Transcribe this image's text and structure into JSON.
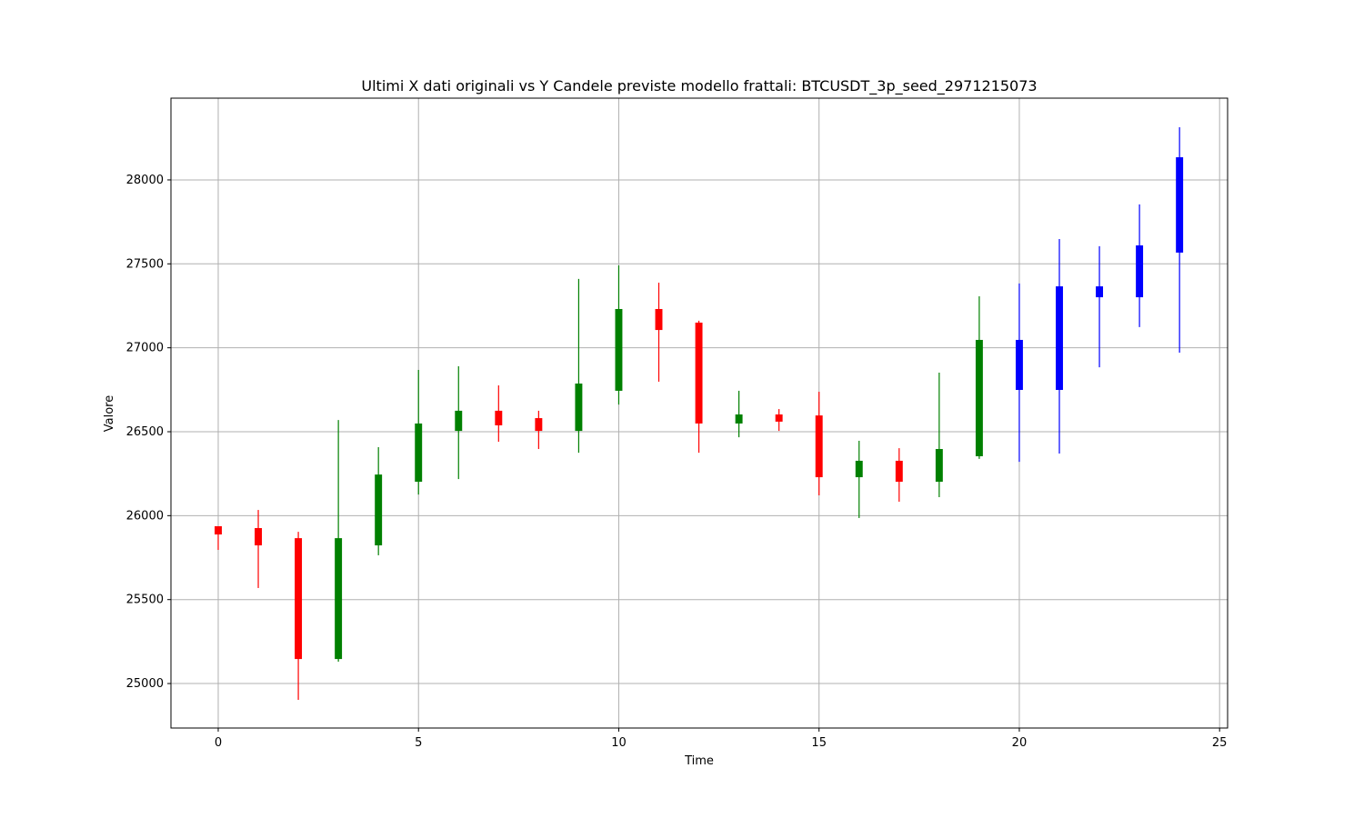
{
  "chart_data": {
    "type": "candlestick",
    "title": "Ultimi X dati originali vs Y Candele previste modello frattali: BTCUSDT_3p_seed_2971215073",
    "x_label": "Time",
    "y_label": "Valore",
    "x": [
      0,
      1,
      2,
      3,
      4,
      5,
      6,
      7,
      8,
      9,
      10,
      11,
      12,
      13,
      14,
      15,
      16,
      17,
      18,
      19,
      20,
      21,
      22,
      23,
      24
    ],
    "open": [
      25937,
      25926,
      25866,
      25146,
      25823,
      26202,
      26505,
      26625,
      26581,
      26505,
      26744,
      27231,
      27150,
      26549,
      26603,
      26597,
      26229,
      26327,
      26202,
      26354,
      26749,
      26749,
      27301,
      27301,
      27567
    ],
    "high": [
      25937,
      26034,
      25904,
      26570,
      26408,
      26868,
      26890,
      26776,
      26625,
      27410,
      27491,
      27388,
      27161,
      26744,
      26635,
      26738,
      26446,
      26402,
      26852,
      27307,
      27383,
      27648,
      27605,
      27854,
      28314
    ],
    "low": [
      25796,
      25569,
      24903,
      25130,
      25764,
      26126,
      26218,
      26440,
      26397,
      26375,
      26662,
      26798,
      26375,
      26467,
      26505,
      26121,
      25986,
      26083,
      26110,
      26338,
      26321,
      26370,
      26884,
      27123,
      26971
    ],
    "close": [
      25888,
      25823,
      25146,
      25866,
      26245,
      26549,
      26625,
      26538,
      26505,
      26787,
      27231,
      27106,
      26549,
      26603,
      26560,
      26229,
      26327,
      26202,
      26397,
      27047,
      27047,
      27366,
      27366,
      27610,
      28135
    ],
    "colors": [
      "red",
      "red",
      "red",
      "green",
      "green",
      "green",
      "green",
      "red",
      "red",
      "green",
      "green",
      "red",
      "red",
      "green",
      "red",
      "red",
      "green",
      "red",
      "green",
      "green",
      "blue",
      "blue",
      "blue",
      "blue",
      "blue"
    ],
    "xlim": [
      -1.18,
      25.2
    ],
    "ylim": [
      24735,
      28487
    ],
    "xticks": [
      0,
      5,
      10,
      15,
      20,
      25
    ],
    "yticks": [
      25000,
      25500,
      26000,
      26500,
      27000,
      27500,
      28000
    ],
    "grid": true
  }
}
